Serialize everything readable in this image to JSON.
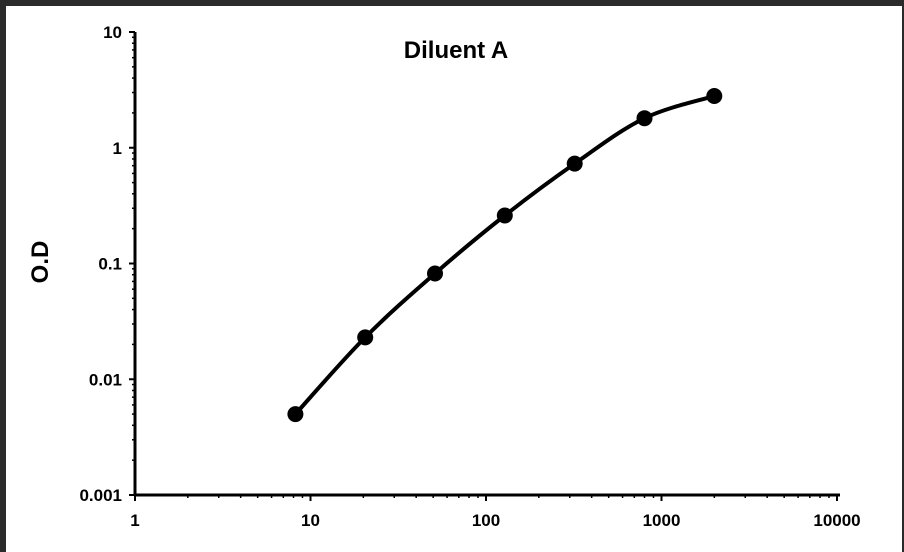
{
  "chart_data": {
    "type": "line",
    "title": "Diluent A",
    "xlabel": "",
    "ylabel": "O.D",
    "x_scale": "log",
    "y_scale": "log",
    "xlim": [
      1,
      10000
    ],
    "ylim": [
      0.001,
      10
    ],
    "x_ticks": [
      "1",
      "10",
      "100",
      "1000",
      "10000"
    ],
    "y_ticks": [
      "0.001",
      "0.01",
      "0.1",
      "1",
      "10"
    ],
    "series": [
      {
        "color": "#000000",
        "marker": "circle",
        "x": [
          8.2,
          20.5,
          51.2,
          128,
          320,
          800,
          2000
        ],
        "y": [
          0.005,
          0.023,
          0.082,
          0.26,
          0.73,
          1.8,
          2.8
        ]
      }
    ],
    "grid": false,
    "legend": "none"
  }
}
